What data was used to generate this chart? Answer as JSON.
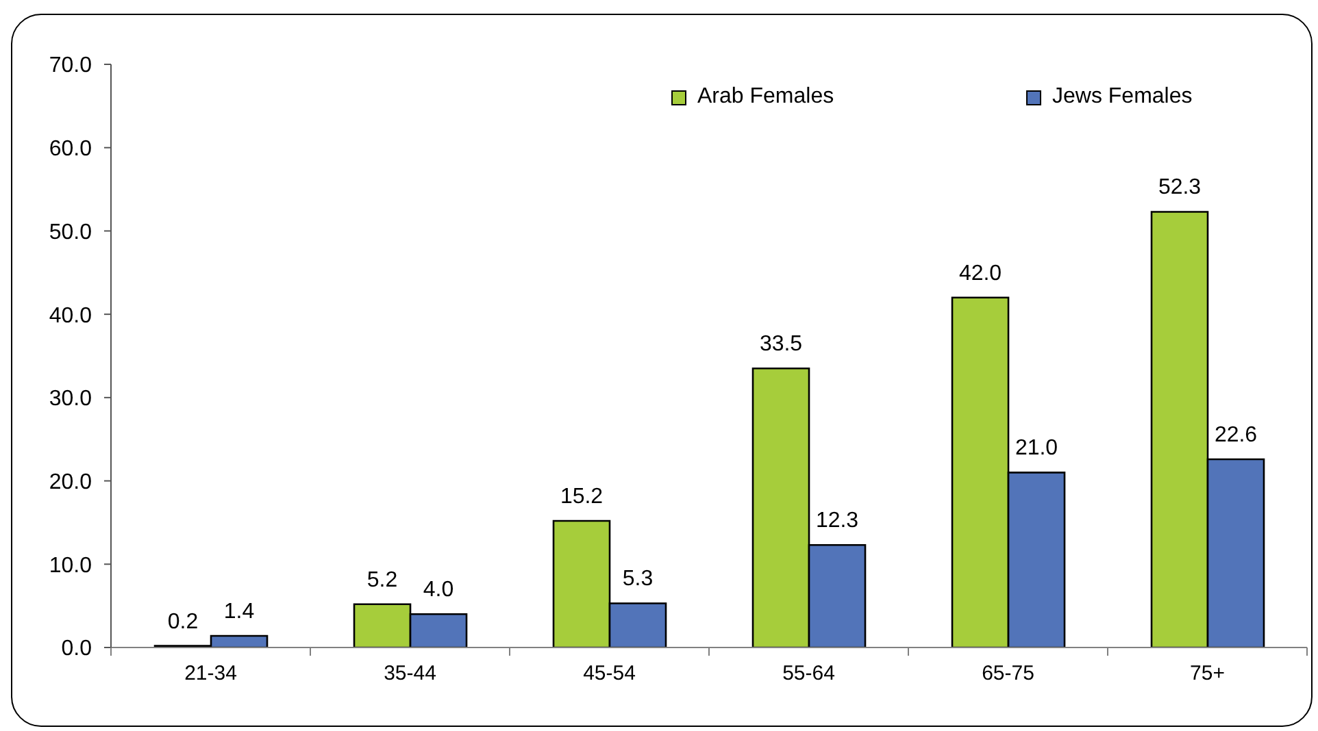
{
  "chart_data": {
    "type": "bar",
    "categories": [
      "21-34",
      "35-44",
      "45-54",
      "55-64",
      "65-75",
      "75+"
    ],
    "series": [
      {
        "name": "Arab Females",
        "color": "#a6cd3b",
        "values": [
          0.2,
          5.2,
          15.2,
          33.5,
          42.0,
          52.3
        ],
        "value_labels": [
          "0.2",
          "5.2",
          "15.2",
          "33.5",
          "42.0",
          "52.3"
        ]
      },
      {
        "name": "Jews Females",
        "color": "#5274b9",
        "values": [
          1.4,
          4.0,
          5.3,
          12.3,
          21.0,
          22.6
        ],
        "value_labels": [
          "1.4",
          "4.0",
          "5.3",
          "12.3",
          "21.0",
          "22.6"
        ]
      }
    ],
    "ylim": [
      0,
      70
    ],
    "yticks": [
      {
        "value": 0,
        "label": "0.0"
      },
      {
        "value": 10,
        "label": "10.0"
      },
      {
        "value": 20,
        "label": "20.0"
      },
      {
        "value": 30,
        "label": "30.0"
      },
      {
        "value": 40,
        "label": "40.0"
      },
      {
        "value": 50,
        "label": "50.0"
      },
      {
        "value": 60,
        "label": "60.0"
      },
      {
        "value": 70,
        "label": "70.0"
      }
    ],
    "legend": "top right"
  }
}
